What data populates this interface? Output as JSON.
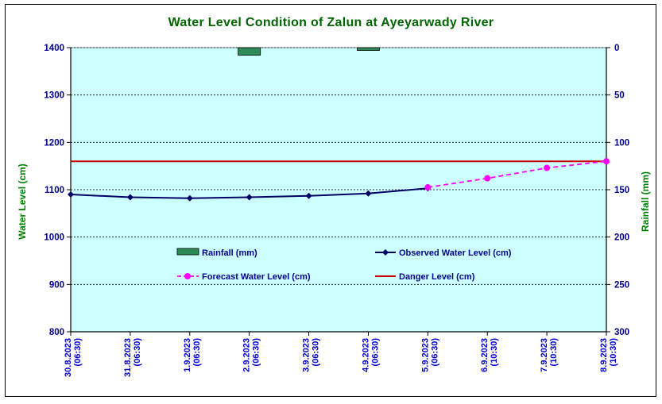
{
  "chart_data": {
    "type": "line",
    "title": "Water Level Condition of Zalun at Ayeyarwady River",
    "ylabel": "Water Level (cm)",
    "y2label": "Rainfall (mm)",
    "ylim": [
      800,
      1400
    ],
    "y2lim": [
      0,
      300
    ],
    "y2_inverted": true,
    "yticks": [
      "800",
      "900",
      "1000",
      "1100",
      "1200",
      "1300",
      "1400"
    ],
    "y2ticks": [
      "0",
      "50",
      "100",
      "150",
      "200",
      "250",
      "300"
    ],
    "categories": [
      {
        "date": "30.8.2023",
        "time": "(06:30)"
      },
      {
        "date": "31.8.2023",
        "time": "(06:30)"
      },
      {
        "date": "1.9.2023",
        "time": "(06:30)"
      },
      {
        "date": "2.9.2023",
        "time": "(06:30)"
      },
      {
        "date": "3.9.2023",
        "time": "(06:30)"
      },
      {
        "date": "4.9.2023",
        "time": "(06:30)"
      },
      {
        "date": "5.9.2023",
        "time": "(06:30)"
      },
      {
        "date": "6.9.2023",
        "time": "(10:30)"
      },
      {
        "date": "7.9.2023",
        "time": "(10:30)"
      },
      {
        "date": "8.9.2023",
        "time": "(10:30)"
      }
    ],
    "series": [
      {
        "name": "Rainfall (mm)",
        "kind": "bar",
        "axis": "right",
        "color": "#2E8B57",
        "values": [
          0,
          0,
          0,
          8,
          0,
          3,
          0,
          null,
          null,
          null
        ]
      },
      {
        "name": "Observed Water Level (cm)",
        "kind": "line",
        "axis": "left",
        "color": "#000066",
        "values": [
          1090,
          1084,
          1082,
          1084,
          1087,
          1092,
          1103,
          null,
          null,
          null
        ]
      },
      {
        "name": "Forecast Water Level (cm)",
        "kind": "dashed-line",
        "axis": "left",
        "color": "#FF00FF",
        "values": [
          null,
          null,
          null,
          null,
          null,
          null,
          1105,
          1124,
          1146,
          1160
        ]
      },
      {
        "name": "Danger Level (cm)",
        "kind": "hline",
        "axis": "left",
        "color": "#CC0000",
        "values": [
          1160,
          1160,
          1160,
          1160,
          1160,
          1160,
          1160,
          1160,
          1160,
          1160
        ]
      }
    ],
    "grid": true,
    "plot_background": "#CCFFFF",
    "legend_position": "center"
  }
}
